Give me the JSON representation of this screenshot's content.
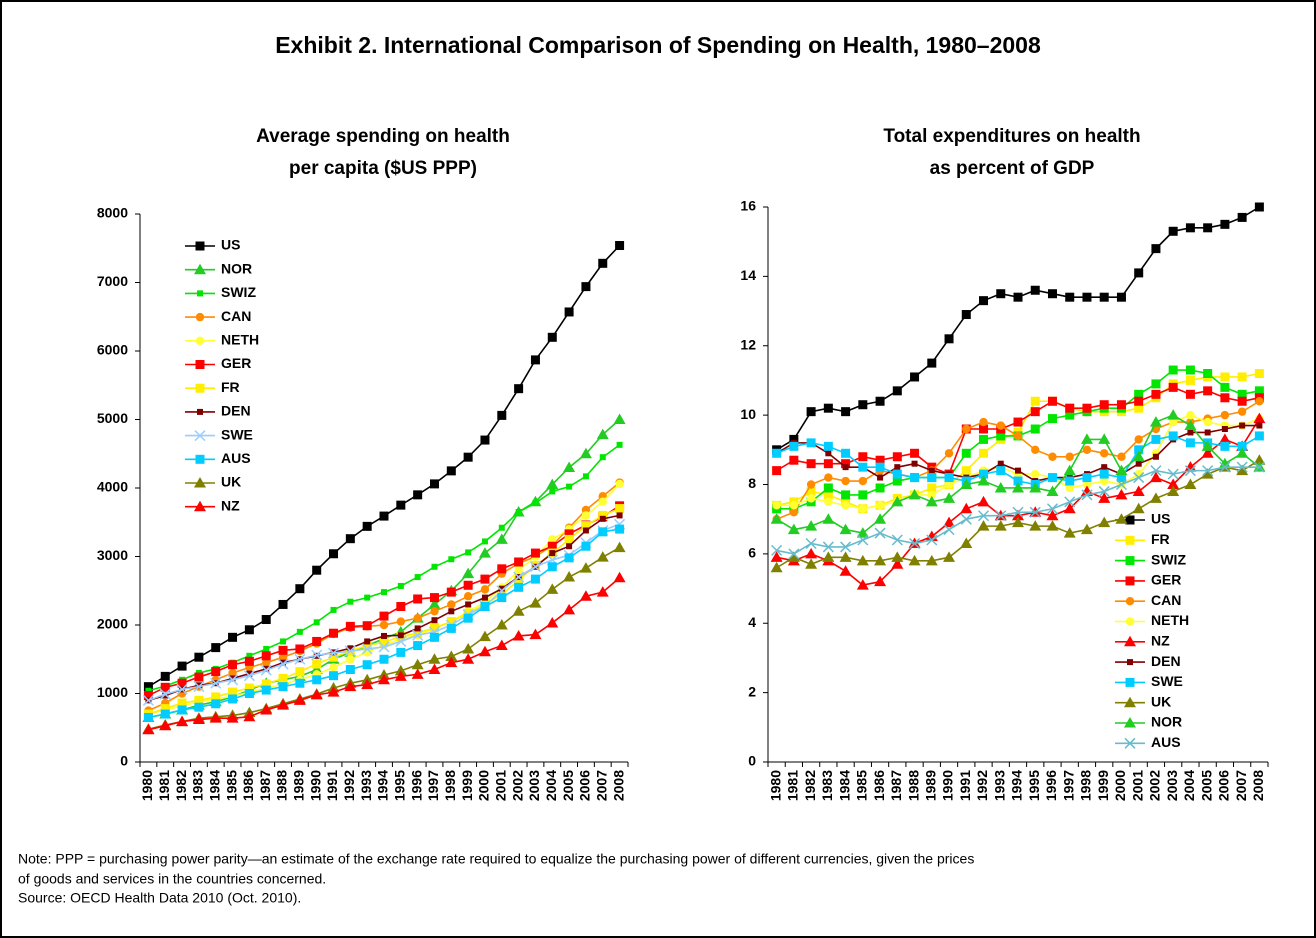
{
  "title": "Exhibit 2. International Comparison of Spending on Health, 1980–2008",
  "chart_data": [
    {
      "type": "line",
      "title": [
        "Average spending on health",
        "per capita ($US PPP)"
      ],
      "categories": [
        "1980",
        "1981",
        "1982",
        "1983",
        "1984",
        "1985",
        "1986",
        "1987",
        "1988",
        "1989",
        "1990",
        "1991",
        "1992",
        "1993",
        "1994",
        "1995",
        "1996",
        "1997",
        "1998",
        "1999",
        "2000",
        "2001",
        "2002",
        "2003",
        "2004",
        "2005",
        "2006",
        "2007",
        "2008"
      ],
      "ylim": [
        0,
        8000
      ],
      "yticks": [
        0,
        1000,
        2000,
        3000,
        4000,
        5000,
        6000,
        7000,
        8000
      ],
      "grid": false,
      "legend": "upper left",
      "series": [
        {
          "name": "US",
          "color": "#000000",
          "marker": "square",
          "values": [
            1100,
            1250,
            1400,
            1530,
            1670,
            1820,
            1930,
            2080,
            2300,
            2530,
            2800,
            3040,
            3260,
            3440,
            3590,
            3750,
            3900,
            4060,
            4250,
            4450,
            4700,
            5060,
            5450,
            5870,
            6200,
            6570,
            6940,
            7280,
            7540
          ]
        },
        {
          "name": "NOR",
          "color": "#22cc22",
          "marker": "triangle",
          "values": [
            650,
            700,
            760,
            830,
            880,
            950,
            1050,
            1150,
            1200,
            1250,
            1350,
            1500,
            1600,
            1700,
            1800,
            1900,
            2100,
            2300,
            2500,
            2750,
            3050,
            3250,
            3650,
            3800,
            4050,
            4300,
            4500,
            4780,
            5000
          ]
        },
        {
          "name": "SWIZ",
          "color": "#00e600",
          "marker": "small-square",
          "values": [
            1040,
            1110,
            1200,
            1300,
            1360,
            1450,
            1550,
            1650,
            1760,
            1900,
            2040,
            2220,
            2340,
            2400,
            2480,
            2570,
            2700,
            2850,
            2960,
            3060,
            3220,
            3420,
            3650,
            3780,
            3950,
            4020,
            4170,
            4450,
            4630
          ]
        },
        {
          "name": "CAN",
          "color": "#ff8c00",
          "marker": "circle",
          "values": [
            750,
            860,
            1000,
            1100,
            1200,
            1300,
            1380,
            1450,
            1530,
            1620,
            1730,
            1870,
            1960,
            1980,
            2000,
            2050,
            2100,
            2200,
            2300,
            2420,
            2520,
            2750,
            2900,
            3000,
            3160,
            3420,
            3680,
            3880,
            4080
          ]
        },
        {
          "name": "NETH",
          "color": "#ffff33",
          "marker": "circle",
          "values": [
            700,
            760,
            820,
            880,
            920,
            960,
            1020,
            1080,
            1140,
            1200,
            1280,
            1380,
            1500,
            1600,
            1700,
            1800,
            1850,
            1950,
            2050,
            2200,
            2330,
            2550,
            2800,
            3000,
            3250,
            3400,
            3600,
            3800,
            4060
          ]
        },
        {
          "name": "GER",
          "color": "#ff0000",
          "marker": "square",
          "values": [
            970,
            1090,
            1150,
            1240,
            1320,
            1420,
            1470,
            1550,
            1630,
            1650,
            1760,
            1880,
            1980,
            1990,
            2130,
            2270,
            2380,
            2400,
            2480,
            2580,
            2670,
            2820,
            2920,
            3050,
            3150,
            3330,
            3460,
            3580,
            3740
          ]
        },
        {
          "name": "FR",
          "color": "#ffee00",
          "marker": "square",
          "values": [
            700,
            780,
            860,
            900,
            950,
            1020,
            1080,
            1140,
            1220,
            1320,
            1430,
            1530,
            1620,
            1700,
            1750,
            1830,
            1880,
            1960,
            2050,
            2170,
            2300,
            2450,
            2650,
            2870,
            3050,
            3250,
            3450,
            3600,
            3700
          ]
        },
        {
          "name": "DEN",
          "color": "#800000",
          "marker": "small-square",
          "values": [
            900,
            970,
            1060,
            1120,
            1150,
            1220,
            1290,
            1360,
            1450,
            1500,
            1550,
            1600,
            1660,
            1760,
            1840,
            1850,
            1950,
            2070,
            2200,
            2300,
            2400,
            2530,
            2700,
            2850,
            3050,
            3150,
            3380,
            3550,
            3600
          ]
        },
        {
          "name": "SWE",
          "color": "#99ccff",
          "marker": "x",
          "values": [
            900,
            990,
            1060,
            1100,
            1150,
            1200,
            1260,
            1340,
            1430,
            1500,
            1560,
            1590,
            1620,
            1650,
            1680,
            1760,
            1850,
            1900,
            2000,
            2150,
            2280,
            2500,
            2700,
            2850,
            2950,
            3020,
            3200,
            3380,
            3470
          ]
        },
        {
          "name": "AUS",
          "color": "#00ccff",
          "marker": "square",
          "values": [
            650,
            700,
            760,
            800,
            850,
            920,
            1000,
            1050,
            1100,
            1150,
            1200,
            1260,
            1350,
            1420,
            1500,
            1600,
            1700,
            1820,
            1950,
            2100,
            2270,
            2400,
            2550,
            2670,
            2850,
            2980,
            3150,
            3360,
            3400
          ]
        },
        {
          "name": "UK",
          "color": "#808000",
          "marker": "triangle",
          "values": [
            480,
            540,
            590,
            640,
            660,
            680,
            720,
            780,
            850,
            920,
            990,
            1080,
            1150,
            1200,
            1270,
            1330,
            1420,
            1500,
            1540,
            1650,
            1830,
            2000,
            2200,
            2320,
            2520,
            2700,
            2830,
            2990,
            3130
          ]
        },
        {
          "name": "NZ",
          "color": "#ff0000",
          "marker": "triangle",
          "values": [
            470,
            530,
            590,
            620,
            640,
            640,
            660,
            760,
            830,
            900,
            980,
            1020,
            1100,
            1130,
            1200,
            1250,
            1280,
            1350,
            1450,
            1500,
            1610,
            1700,
            1840,
            1860,
            2030,
            2220,
            2420,
            2480,
            2690
          ]
        }
      ]
    },
    {
      "type": "line",
      "title": [
        "Total expenditures on health",
        "as percent of GDP"
      ],
      "categories": [
        "1980",
        "1981",
        "1982",
        "1983",
        "1984",
        "1985",
        "1986",
        "1987",
        "1988",
        "1989",
        "1990",
        "1991",
        "1992",
        "1993",
        "1994",
        "1995",
        "1996",
        "1997",
        "1998",
        "1999",
        "2000",
        "2001",
        "2002",
        "2003",
        "2004",
        "2005",
        "2006",
        "2007",
        "2008"
      ],
      "ylim": [
        0,
        16
      ],
      "yticks": [
        0,
        2,
        4,
        6,
        8,
        10,
        12,
        14,
        16
      ],
      "grid": false,
      "legend": "lower right",
      "series": [
        {
          "name": "US",
          "color": "#000000",
          "marker": "square",
          "values": [
            9.0,
            9.3,
            10.1,
            10.2,
            10.1,
            10.3,
            10.4,
            10.7,
            11.1,
            11.5,
            12.2,
            12.9,
            13.3,
            13.5,
            13.4,
            13.6,
            13.5,
            13.4,
            13.4,
            13.4,
            13.4,
            14.1,
            14.8,
            15.3,
            15.4,
            15.4,
            15.5,
            15.7,
            16.0
          ]
        },
        {
          "name": "FR",
          "color": "#ffee00",
          "marker": "square",
          "values": [
            7.4,
            7.5,
            7.8,
            7.7,
            7.5,
            7.3,
            7.4,
            7.6,
            7.7,
            7.9,
            8.0,
            8.4,
            8.9,
            9.3,
            9.5,
            10.4,
            10.4,
            10.2,
            10.1,
            10.1,
            10.1,
            10.2,
            10.5,
            10.9,
            11.0,
            11.1,
            11.1,
            11.1,
            11.2
          ]
        },
        {
          "name": "SWIZ",
          "color": "#00e600",
          "marker": "square",
          "values": [
            7.3,
            7.3,
            7.5,
            7.9,
            7.7,
            7.7,
            7.9,
            8.1,
            8.2,
            8.2,
            8.2,
            8.9,
            9.3,
            9.4,
            9.4,
            9.6,
            9.9,
            10.0,
            10.1,
            10.2,
            10.2,
            10.6,
            10.9,
            11.3,
            11.3,
            11.2,
            10.8,
            10.6,
            10.7
          ]
        },
        {
          "name": "GER",
          "color": "#ff0000",
          "marker": "square",
          "values": [
            8.4,
            8.7,
            8.6,
            8.6,
            8.6,
            8.8,
            8.7,
            8.8,
            8.9,
            8.5,
            8.3,
            9.6,
            9.6,
            9.6,
            9.8,
            10.1,
            10.4,
            10.2,
            10.2,
            10.3,
            10.3,
            10.4,
            10.6,
            10.8,
            10.6,
            10.7,
            10.5,
            10.4,
            10.5
          ]
        },
        {
          "name": "CAN",
          "color": "#ff8c00",
          "marker": "circle",
          "values": [
            7.0,
            7.2,
            8.0,
            8.2,
            8.1,
            8.1,
            8.4,
            8.3,
            8.2,
            8.4,
            8.9,
            9.6,
            9.8,
            9.7,
            9.4,
            9.0,
            8.8,
            8.8,
            9.0,
            8.9,
            8.8,
            9.3,
            9.6,
            9.8,
            9.8,
            9.9,
            10.0,
            10.1,
            10.4
          ]
        },
        {
          "name": "NETH",
          "color": "#ffff33",
          "marker": "circle",
          "values": [
            7.4,
            7.4,
            7.6,
            7.5,
            7.4,
            7.3,
            7.4,
            7.5,
            7.7,
            7.7,
            8.0,
            8.2,
            8.4,
            8.5,
            8.3,
            8.3,
            8.2,
            7.9,
            8.0,
            8.1,
            8.0,
            8.3,
            8.9,
            9.8,
            10.0,
            9.8,
            9.7,
            9.7,
            9.9
          ]
        },
        {
          "name": "NZ",
          "color": "#ff0000",
          "marker": "triangle",
          "values": [
            5.9,
            5.8,
            6.0,
            5.8,
            5.5,
            5.1,
            5.2,
            5.7,
            6.3,
            6.5,
            6.9,
            7.3,
            7.5,
            7.1,
            7.1,
            7.2,
            7.1,
            7.3,
            7.8,
            7.6,
            7.7,
            7.8,
            8.2,
            8.0,
            8.5,
            8.9,
            9.3,
            9.1,
            9.9
          ]
        },
        {
          "name": "DEN",
          "color": "#800000",
          "marker": "small-square",
          "values": [
            8.9,
            9.2,
            9.2,
            8.9,
            8.5,
            8.5,
            8.2,
            8.5,
            8.6,
            8.4,
            8.3,
            8.2,
            8.3,
            8.6,
            8.4,
            8.1,
            8.2,
            8.2,
            8.3,
            8.5,
            8.3,
            8.6,
            8.8,
            9.3,
            9.5,
            9.5,
            9.6,
            9.7,
            9.7
          ]
        },
        {
          "name": "SWE",
          "color": "#00ccff",
          "marker": "square",
          "values": [
            8.9,
            9.1,
            9.2,
            9.1,
            8.9,
            8.5,
            8.5,
            8.3,
            8.2,
            8.2,
            8.2,
            8.1,
            8.3,
            8.4,
            8.1,
            8.0,
            8.2,
            8.1,
            8.2,
            8.3,
            8.2,
            9.0,
            9.3,
            9.4,
            9.2,
            9.2,
            9.1,
            9.1,
            9.4
          ]
        },
        {
          "name": "UK",
          "color": "#808000",
          "marker": "triangle",
          "values": [
            5.6,
            5.9,
            5.7,
            5.9,
            5.9,
            5.8,
            5.8,
            5.9,
            5.8,
            5.8,
            5.9,
            6.3,
            6.8,
            6.8,
            6.9,
            6.8,
            6.8,
            6.6,
            6.7,
            6.9,
            7.0,
            7.3,
            7.6,
            7.8,
            8.0,
            8.3,
            8.5,
            8.4,
            8.7
          ]
        },
        {
          "name": "NOR",
          "color": "#22cc22",
          "marker": "triangle",
          "values": [
            7.0,
            6.7,
            6.8,
            7.0,
            6.7,
            6.6,
            7.0,
            7.5,
            7.7,
            7.5,
            7.6,
            8.0,
            8.1,
            7.9,
            7.9,
            7.9,
            7.8,
            8.4,
            9.3,
            9.3,
            8.4,
            8.8,
            9.8,
            10.0,
            9.7,
            9.1,
            8.6,
            8.9,
            8.5
          ]
        },
        {
          "name": "AUS",
          "color": "#66bbcc",
          "marker": "x",
          "values": [
            6.1,
            6.0,
            6.3,
            6.2,
            6.2,
            6.4,
            6.6,
            6.4,
            6.3,
            6.4,
            6.7,
            7.0,
            7.1,
            7.1,
            7.2,
            7.2,
            7.3,
            7.5,
            7.7,
            7.8,
            8.0,
            8.2,
            8.4,
            8.3,
            8.4,
            8.4,
            8.5,
            8.5,
            8.5
          ]
        }
      ]
    }
  ],
  "note": [
    "Note: PPP = purchasing power parity—an estimate of the exchange rate required to equalize the purchasing power of different currencies, given the prices",
    "of goods and services in the countries concerned."
  ],
  "source": "Source: OECD Health Data 2010 (Oct. 2010)."
}
